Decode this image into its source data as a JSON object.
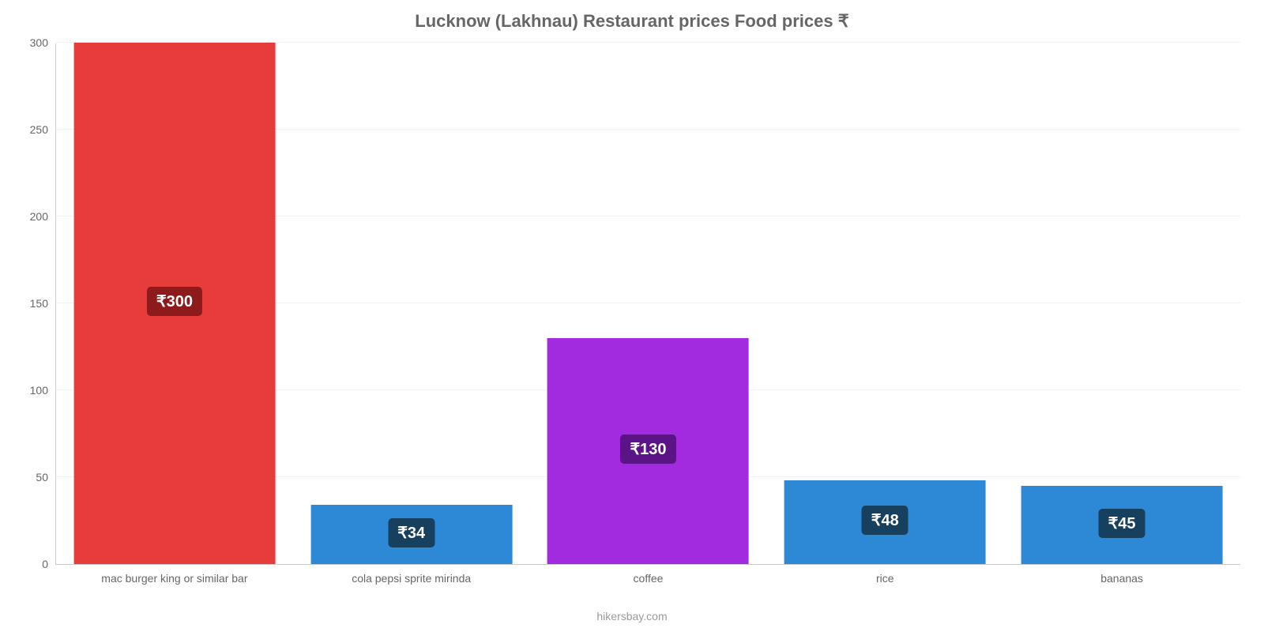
{
  "chart": {
    "type": "bar",
    "title": "Lucknow (Lakhnau) Restaurant prices Food prices ₹",
    "title_color": "#666666",
    "title_fontsize": 22,
    "footer": "hikersbay.com",
    "footer_color": "#999999",
    "background_color": "#ffffff",
    "grid_color": "#f2f2f2",
    "axis_line_color": "#cccccc",
    "tick_label_color": "#666666",
    "tick_label_fontsize": 14,
    "value_badge_fontsize": 20,
    "value_badge_text_color": "#ffffff",
    "ylim": [
      0,
      300
    ],
    "ytick_step": 50,
    "bar_width_pct": 85,
    "categories": [
      "mac burger king or similar bar",
      "cola pepsi sprite mirinda",
      "coffee",
      "rice",
      "bananas"
    ],
    "values": [
      300,
      34,
      130,
      48,
      45
    ],
    "value_labels": [
      "₹300",
      "₹34",
      "₹130",
      "₹48",
      "₹45"
    ],
    "bar_colors": [
      "#e73c3c",
      "#2d89d6",
      "#a22be0",
      "#2d89d6",
      "#2d89d6"
    ],
    "badge_colors": [
      "#8e1b1b",
      "#17405f",
      "#5a1485",
      "#17405f",
      "#17405f"
    ]
  }
}
